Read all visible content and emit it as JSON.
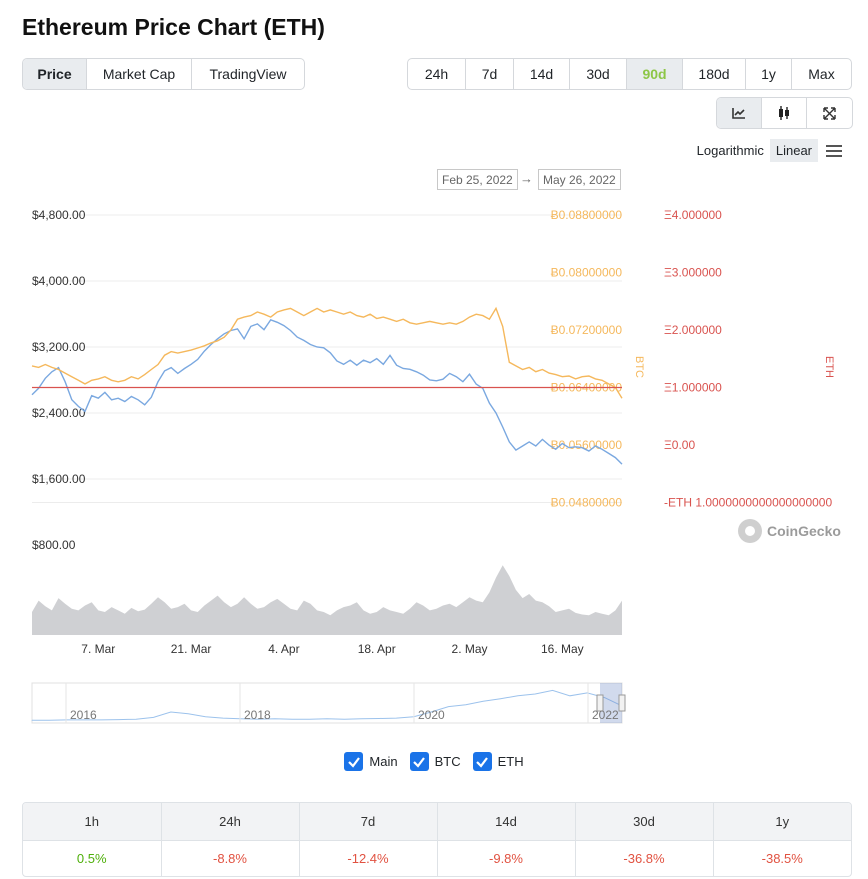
{
  "page": {
    "title": "Ethereum Price Chart (ETH)"
  },
  "view_tabs": [
    {
      "label": "Price",
      "active": true
    },
    {
      "label": "Market Cap",
      "active": false
    },
    {
      "label": "TradingView",
      "active": false
    }
  ],
  "range_tabs": [
    {
      "label": "24h",
      "active": false
    },
    {
      "label": "7d",
      "active": false
    },
    {
      "label": "14d",
      "active": false
    },
    {
      "label": "30d",
      "active": false
    },
    {
      "label": "90d",
      "active": true
    },
    {
      "label": "180d",
      "active": false
    },
    {
      "label": "1y",
      "active": false
    },
    {
      "label": "Max",
      "active": false
    }
  ],
  "tools": [
    {
      "icon": "line-chart-icon",
      "active": true
    },
    {
      "icon": "candlestick-icon",
      "active": false
    },
    {
      "icon": "fullscreen-icon",
      "active": false
    }
  ],
  "scale": {
    "logarithmic": "Logarithmic",
    "linear": "Linear",
    "selected": "Linear"
  },
  "date_range": {
    "from": "Feb 25, 2022",
    "to": "May 26, 2022",
    "arrow": "→"
  },
  "chart_data": {
    "type": "line",
    "colors": {
      "usd": "#7aa8e0",
      "btc": "#f5b85c",
      "eth_line": "#d9534f",
      "volume": "#cfd0d3",
      "axis_btc": "#f5b85c",
      "axis_eth": "#d9534f"
    },
    "y_usd": {
      "ticks": [
        "$4,800.00",
        "$4,000.00",
        "$3,200.00",
        "$2,400.00",
        "$1,600.00",
        "$800.00"
      ],
      "values": [
        4800,
        4000,
        3200,
        2400,
        1600,
        800
      ]
    },
    "y_btc": {
      "label": "BTC",
      "ticks": [
        "Ƀ0.08800000",
        "Ƀ0.08000000",
        "Ƀ0.07200000",
        "Ƀ0.06400000",
        "Ƀ0.05600000",
        "Ƀ0.04800000"
      ],
      "values": [
        0.088,
        0.08,
        0.072,
        0.064,
        0.056,
        0.048
      ]
    },
    "y_eth": {
      "label": "ETH",
      "ticks": [
        "Ξ4.000000",
        "Ξ3.000000",
        "Ξ2.000000",
        "Ξ1.000000",
        "Ξ0.00",
        "-ETH 1.0000000000000000000"
      ],
      "values": [
        4,
        3,
        2,
        1,
        0,
        -1
      ]
    },
    "x_ticks": [
      "7. Mar",
      "21. Mar",
      "4. Apr",
      "18. Apr",
      "2. May",
      "16. May"
    ],
    "x_tick_days": [
      10,
      24,
      38,
      52,
      66,
      80
    ],
    "series": [
      {
        "name": "Main",
        "axis": "usd",
        "points": [
          [
            0,
            2620
          ],
          [
            1,
            2700
          ],
          [
            2,
            2820
          ],
          [
            3,
            2900
          ],
          [
            4,
            2950
          ],
          [
            5,
            2780
          ],
          [
            6,
            2560
          ],
          [
            7,
            2480
          ],
          [
            8,
            2420
          ],
          [
            9,
            2610
          ],
          [
            10,
            2580
          ],
          [
            11,
            2650
          ],
          [
            12,
            2560
          ],
          [
            13,
            2580
          ],
          [
            14,
            2540
          ],
          [
            15,
            2600
          ],
          [
            16,
            2560
          ],
          [
            17,
            2500
          ],
          [
            18,
            2590
          ],
          [
            19,
            2780
          ],
          [
            20,
            2910
          ],
          [
            21,
            2950
          ],
          [
            22,
            2880
          ],
          [
            23,
            2940
          ],
          [
            24,
            2990
          ],
          [
            25,
            3050
          ],
          [
            26,
            3150
          ],
          [
            27,
            3230
          ],
          [
            28,
            3300
          ],
          [
            29,
            3360
          ],
          [
            30,
            3400
          ],
          [
            31,
            3420
          ],
          [
            32,
            3300
          ],
          [
            33,
            3450
          ],
          [
            34,
            3480
          ],
          [
            35,
            3410
          ],
          [
            36,
            3530
          ],
          [
            37,
            3500
          ],
          [
            38,
            3460
          ],
          [
            39,
            3400
          ],
          [
            40,
            3320
          ],
          [
            41,
            3280
          ],
          [
            42,
            3230
          ],
          [
            43,
            3200
          ],
          [
            44,
            3190
          ],
          [
            45,
            3130
          ],
          [
            46,
            3030
          ],
          [
            47,
            2990
          ],
          [
            48,
            3040
          ],
          [
            49,
            2980
          ],
          [
            50,
            3040
          ],
          [
            51,
            3010
          ],
          [
            52,
            3060
          ],
          [
            53,
            2990
          ],
          [
            54,
            3100
          ],
          [
            55,
            2980
          ],
          [
            56,
            2940
          ],
          [
            57,
            2930
          ],
          [
            58,
            2900
          ],
          [
            59,
            2860
          ],
          [
            60,
            2800
          ],
          [
            61,
            2790
          ],
          [
            62,
            2810
          ],
          [
            63,
            2880
          ],
          [
            64,
            2840
          ],
          [
            65,
            2780
          ],
          [
            66,
            2870
          ],
          [
            67,
            2750
          ],
          [
            68,
            2700
          ],
          [
            69,
            2520
          ],
          [
            70,
            2400
          ],
          [
            71,
            2230
          ],
          [
            72,
            2050
          ],
          [
            73,
            1950
          ],
          [
            74,
            2000
          ],
          [
            75,
            2050
          ],
          [
            76,
            2000
          ],
          [
            77,
            2080
          ],
          [
            78,
            2010
          ],
          [
            79,
            1960
          ],
          [
            80,
            2030
          ],
          [
            81,
            1980
          ],
          [
            82,
            1990
          ],
          [
            83,
            1980
          ],
          [
            84,
            1940
          ],
          [
            85,
            2000
          ],
          [
            86,
            1960
          ],
          [
            87,
            1910
          ],
          [
            88,
            1860
          ],
          [
            89,
            1780
          ]
        ]
      },
      {
        "name": "BTC",
        "axis": "btc",
        "points": [
          [
            0,
            0.067
          ],
          [
            1,
            0.0668
          ],
          [
            2,
            0.0672
          ],
          [
            3,
            0.0668
          ],
          [
            4,
            0.0665
          ],
          [
            5,
            0.066
          ],
          [
            6,
            0.0655
          ],
          [
            7,
            0.065
          ],
          [
            8,
            0.0645
          ],
          [
            9,
            0.065
          ],
          [
            10,
            0.0652
          ],
          [
            11,
            0.0655
          ],
          [
            12,
            0.065
          ],
          [
            13,
            0.0648
          ],
          [
            14,
            0.065
          ],
          [
            15,
            0.0655
          ],
          [
            16,
            0.0652
          ],
          [
            17,
            0.0658
          ],
          [
            18,
            0.0665
          ],
          [
            19,
            0.0672
          ],
          [
            20,
            0.0685
          ],
          [
            21,
            0.069
          ],
          [
            22,
            0.0688
          ],
          [
            23,
            0.069
          ],
          [
            24,
            0.0692
          ],
          [
            25,
            0.0695
          ],
          [
            26,
            0.0698
          ],
          [
            27,
            0.0702
          ],
          [
            28,
            0.0705
          ],
          [
            29,
            0.071
          ],
          [
            30,
            0.072
          ],
          [
            31,
            0.0735
          ],
          [
            32,
            0.0738
          ],
          [
            33,
            0.074
          ],
          [
            34,
            0.0745
          ],
          [
            35,
            0.0742
          ],
          [
            36,
            0.0738
          ],
          [
            37,
            0.0745
          ],
          [
            38,
            0.0748
          ],
          [
            39,
            0.075
          ],
          [
            40,
            0.0745
          ],
          [
            41,
            0.074
          ],
          [
            42,
            0.0745
          ],
          [
            43,
            0.075
          ],
          [
            44,
            0.0745
          ],
          [
            45,
            0.0748
          ],
          [
            46,
            0.0745
          ],
          [
            47,
            0.0742
          ],
          [
            48,
            0.0745
          ],
          [
            49,
            0.074
          ],
          [
            50,
            0.0738
          ],
          [
            51,
            0.0742
          ],
          [
            52,
            0.0736
          ],
          [
            53,
            0.0738
          ],
          [
            54,
            0.0735
          ],
          [
            55,
            0.0732
          ],
          [
            56,
            0.0735
          ],
          [
            57,
            0.073
          ],
          [
            58,
            0.0728
          ],
          [
            59,
            0.073
          ],
          [
            60,
            0.0732
          ],
          [
            61,
            0.073
          ],
          [
            62,
            0.0728
          ],
          [
            63,
            0.073
          ],
          [
            64,
            0.0728
          ],
          [
            65,
            0.0732
          ],
          [
            66,
            0.0738
          ],
          [
            67,
            0.0742
          ],
          [
            68,
            0.074
          ],
          [
            69,
            0.0735
          ],
          [
            70,
            0.075
          ],
          [
            71,
            0.0725
          ],
          [
            72,
            0.0675
          ],
          [
            73,
            0.067
          ],
          [
            74,
            0.0665
          ],
          [
            75,
            0.0668
          ],
          [
            76,
            0.0662
          ],
          [
            77,
            0.0665
          ],
          [
            78,
            0.066
          ],
          [
            79,
            0.0658
          ],
          [
            80,
            0.0655
          ],
          [
            81,
            0.0656
          ],
          [
            82,
            0.0652
          ],
          [
            83,
            0.0655
          ],
          [
            84,
            0.0656
          ],
          [
            85,
            0.0652
          ],
          [
            86,
            0.065
          ],
          [
            87,
            0.0645
          ],
          [
            88,
            0.064
          ],
          [
            89,
            0.0625
          ]
        ]
      }
    ],
    "eth_reference_line": 1,
    "volume_relative": [
      0.28,
      0.42,
      0.35,
      0.3,
      0.45,
      0.38,
      0.32,
      0.3,
      0.36,
      0.4,
      0.3,
      0.28,
      0.34,
      0.3,
      0.26,
      0.33,
      0.29,
      0.31,
      0.38,
      0.46,
      0.4,
      0.32,
      0.34,
      0.38,
      0.3,
      0.28,
      0.36,
      0.42,
      0.48,
      0.4,
      0.34,
      0.38,
      0.46,
      0.38,
      0.32,
      0.34,
      0.4,
      0.44,
      0.38,
      0.32,
      0.3,
      0.42,
      0.38,
      0.3,
      0.28,
      0.24,
      0.3,
      0.34,
      0.36,
      0.4,
      0.3,
      0.26,
      0.28,
      0.34,
      0.3,
      0.28,
      0.26,
      0.32,
      0.4,
      0.36,
      0.3,
      0.32,
      0.36,
      0.38,
      0.34,
      0.4,
      0.46,
      0.42,
      0.4,
      0.52,
      0.7,
      0.85,
      0.72,
      0.55,
      0.45,
      0.5,
      0.42,
      0.4,
      0.35,
      0.28,
      0.3,
      0.32,
      0.27,
      0.25,
      0.24,
      0.28,
      0.26,
      0.24,
      0.3,
      0.42
    ],
    "volume_ticks": [
      "$800.00"
    ]
  },
  "navigator": {
    "years": [
      "2016",
      "2018",
      "2020",
      "2022"
    ],
    "series_relative": [
      0.02,
      0.02,
      0.03,
      0.03,
      0.03,
      0.04,
      0.05,
      0.1,
      0.25,
      0.2,
      0.12,
      0.08,
      0.06,
      0.05,
      0.06,
      0.05,
      0.05,
      0.06,
      0.05,
      0.06,
      0.07,
      0.08,
      0.12,
      0.25,
      0.4,
      0.45,
      0.55,
      0.62,
      0.7,
      0.75,
      0.85,
      0.7,
      0.78,
      0.65,
      0.42
    ]
  },
  "legend": [
    {
      "label": "Main",
      "checked": true
    },
    {
      "label": "BTC",
      "checked": true
    },
    {
      "label": "ETH",
      "checked": true
    }
  ],
  "watermark": "CoinGecko",
  "performance": {
    "headers": [
      "1h",
      "24h",
      "7d",
      "14d",
      "30d",
      "1y"
    ],
    "values": [
      "0.5%",
      "-8.8%",
      "-12.4%",
      "-9.8%",
      "-36.8%",
      "-38.5%"
    ]
  }
}
